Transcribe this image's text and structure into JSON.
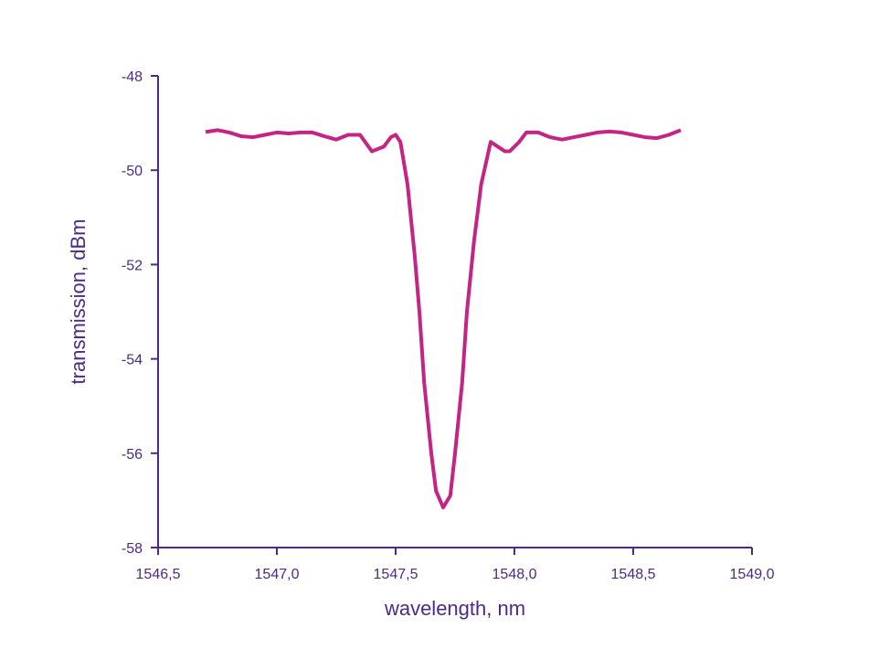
{
  "chart_data": {
    "type": "line",
    "x_label": "wavelength, nm",
    "y_label": "transmission, dBm",
    "xlim": [
      1546.5,
      1549.0
    ],
    "xticks": [
      {
        "value": 1546.5,
        "label": "1546,5"
      },
      {
        "value": 1547.0,
        "label": "1547,0"
      },
      {
        "value": 1547.5,
        "label": "1547,5"
      },
      {
        "value": 1548.0,
        "label": "1548,0"
      },
      {
        "value": 1548.5,
        "label": "1548,5"
      },
      {
        "value": 1549.0,
        "label": "1549,0"
      }
    ],
    "ylim": [
      -58,
      -48
    ],
    "yticks": [
      -58,
      -56,
      -54,
      -52,
      -50,
      -48
    ],
    "axis_color": "#4e2a84",
    "series": [
      {
        "color": "#c42485",
        "x": [
          1546.7,
          1546.75,
          1546.8,
          1546.85,
          1546.9,
          1546.95,
          1547.0,
          1547.05,
          1547.1,
          1547.15,
          1547.2,
          1547.25,
          1547.3,
          1547.35,
          1547.4,
          1547.45,
          1547.48,
          1547.5,
          1547.52,
          1547.55,
          1547.58,
          1547.6,
          1547.62,
          1547.65,
          1547.67,
          1547.7,
          1547.73,
          1547.75,
          1547.78,
          1547.8,
          1547.83,
          1547.86,
          1547.9,
          1547.93,
          1547.96,
          1547.98,
          1548.02,
          1548.05,
          1548.1,
          1548.15,
          1548.2,
          1548.25,
          1548.3,
          1548.35,
          1548.4,
          1548.45,
          1548.5,
          1548.55,
          1548.6,
          1548.65,
          1548.7
        ],
        "values": [
          -49.19,
          -49.15,
          -49.2,
          -49.28,
          -49.3,
          -49.25,
          -49.2,
          -49.22,
          -49.2,
          -49.2,
          -49.28,
          -49.35,
          -49.25,
          -49.25,
          -49.6,
          -49.5,
          -49.3,
          -49.25,
          -49.4,
          -50.3,
          -51.8,
          -53.0,
          -54.5,
          -56.0,
          -56.8,
          -57.15,
          -56.9,
          -56.0,
          -54.5,
          -53.0,
          -51.5,
          -50.3,
          -49.4,
          -49.5,
          -49.6,
          -49.6,
          -49.4,
          -49.2,
          -49.2,
          -49.3,
          -49.35,
          -49.3,
          -49.25,
          -49.2,
          -49.18,
          -49.2,
          -49.25,
          -49.3,
          -49.32,
          -49.25,
          -49.15
        ]
      }
    ]
  }
}
